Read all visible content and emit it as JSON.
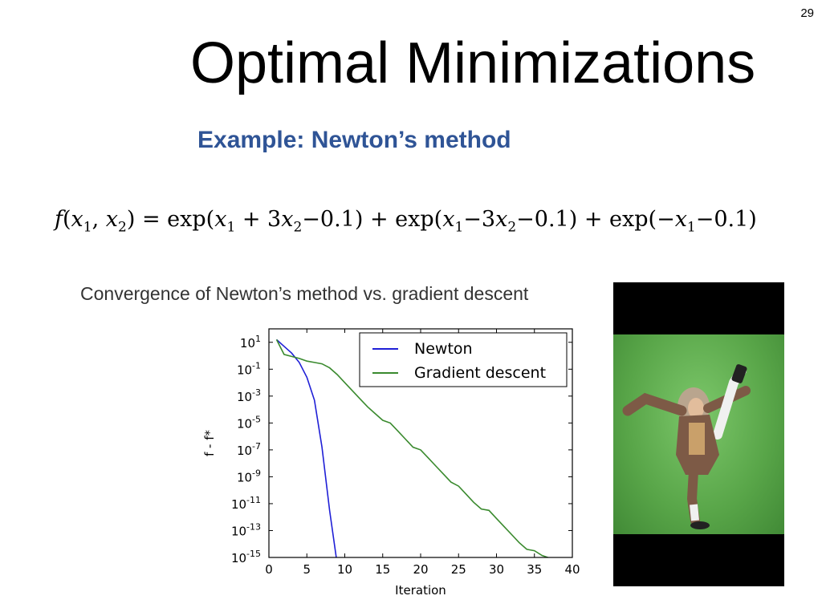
{
  "slide": {
    "page_number": "29",
    "title": "Optimal Minimizations",
    "subtitle": "Example: Newton’s method",
    "formula": {
      "lhs": "f(x1, x2)",
      "rhs": "exp(x1 + 3x2−0.1) + exp(x1−3x2−0.1) + exp(−x1−0.1)"
    },
    "chart_caption": "Convergence of Newton’s method vs. gradient descent",
    "video": {
      "icon": "person-dancing-video-frame",
      "background_color": "#5aa84a"
    }
  },
  "chart_data": {
    "type": "line",
    "title": "",
    "xlabel": "Iteration",
    "ylabel": "f - f*",
    "y_scale": "log",
    "xlim": [
      0,
      40
    ],
    "ylim_exponent": [
      -15,
      2
    ],
    "x_ticks": [
      "0",
      "5",
      "10",
      "15",
      "20",
      "25",
      "30",
      "35",
      "40"
    ],
    "y_tick_exponents": [
      "1",
      "-1",
      "-3",
      "-5",
      "-7",
      "-9",
      "-11",
      "-13",
      "-15"
    ],
    "y_tick_base": "10",
    "grid": false,
    "legend_position": "top-right",
    "series": [
      {
        "name": "Newton",
        "color": "#1f1fd6",
        "x": [
          1,
          2,
          3,
          4,
          5,
          6,
          7,
          8,
          9
        ],
        "log10_y": [
          1.2,
          0.7,
          0.2,
          -0.5,
          -1.6,
          -3.3,
          -6.8,
          -11.5,
          -15.5
        ]
      },
      {
        "name": "Gradient descent",
        "color": "#3a8a2e",
        "x": [
          1,
          2,
          3,
          4,
          5,
          6,
          7,
          8,
          9,
          10,
          11,
          12,
          13,
          14,
          15,
          16,
          17,
          18,
          19,
          20,
          21,
          22,
          23,
          24,
          25,
          26,
          27,
          28,
          29,
          30,
          31,
          32,
          33,
          34,
          35,
          36,
          37,
          38,
          39,
          40
        ],
        "log10_y": [
          1.2,
          0.1,
          -0.05,
          -0.2,
          -0.4,
          -0.5,
          -0.6,
          -0.9,
          -1.4,
          -2.0,
          -2.6,
          -3.2,
          -3.8,
          -4.3,
          -4.8,
          -5.0,
          -5.6,
          -6.2,
          -6.8,
          -7.0,
          -7.6,
          -8.2,
          -8.8,
          -9.4,
          -9.7,
          -10.3,
          -10.9,
          -11.4,
          -11.5,
          -12.1,
          -12.7,
          -13.3,
          -13.9,
          -14.4,
          -14.5,
          -14.85,
          -15.05,
          -15.15,
          -15.2,
          -15.2
        ]
      }
    ]
  }
}
